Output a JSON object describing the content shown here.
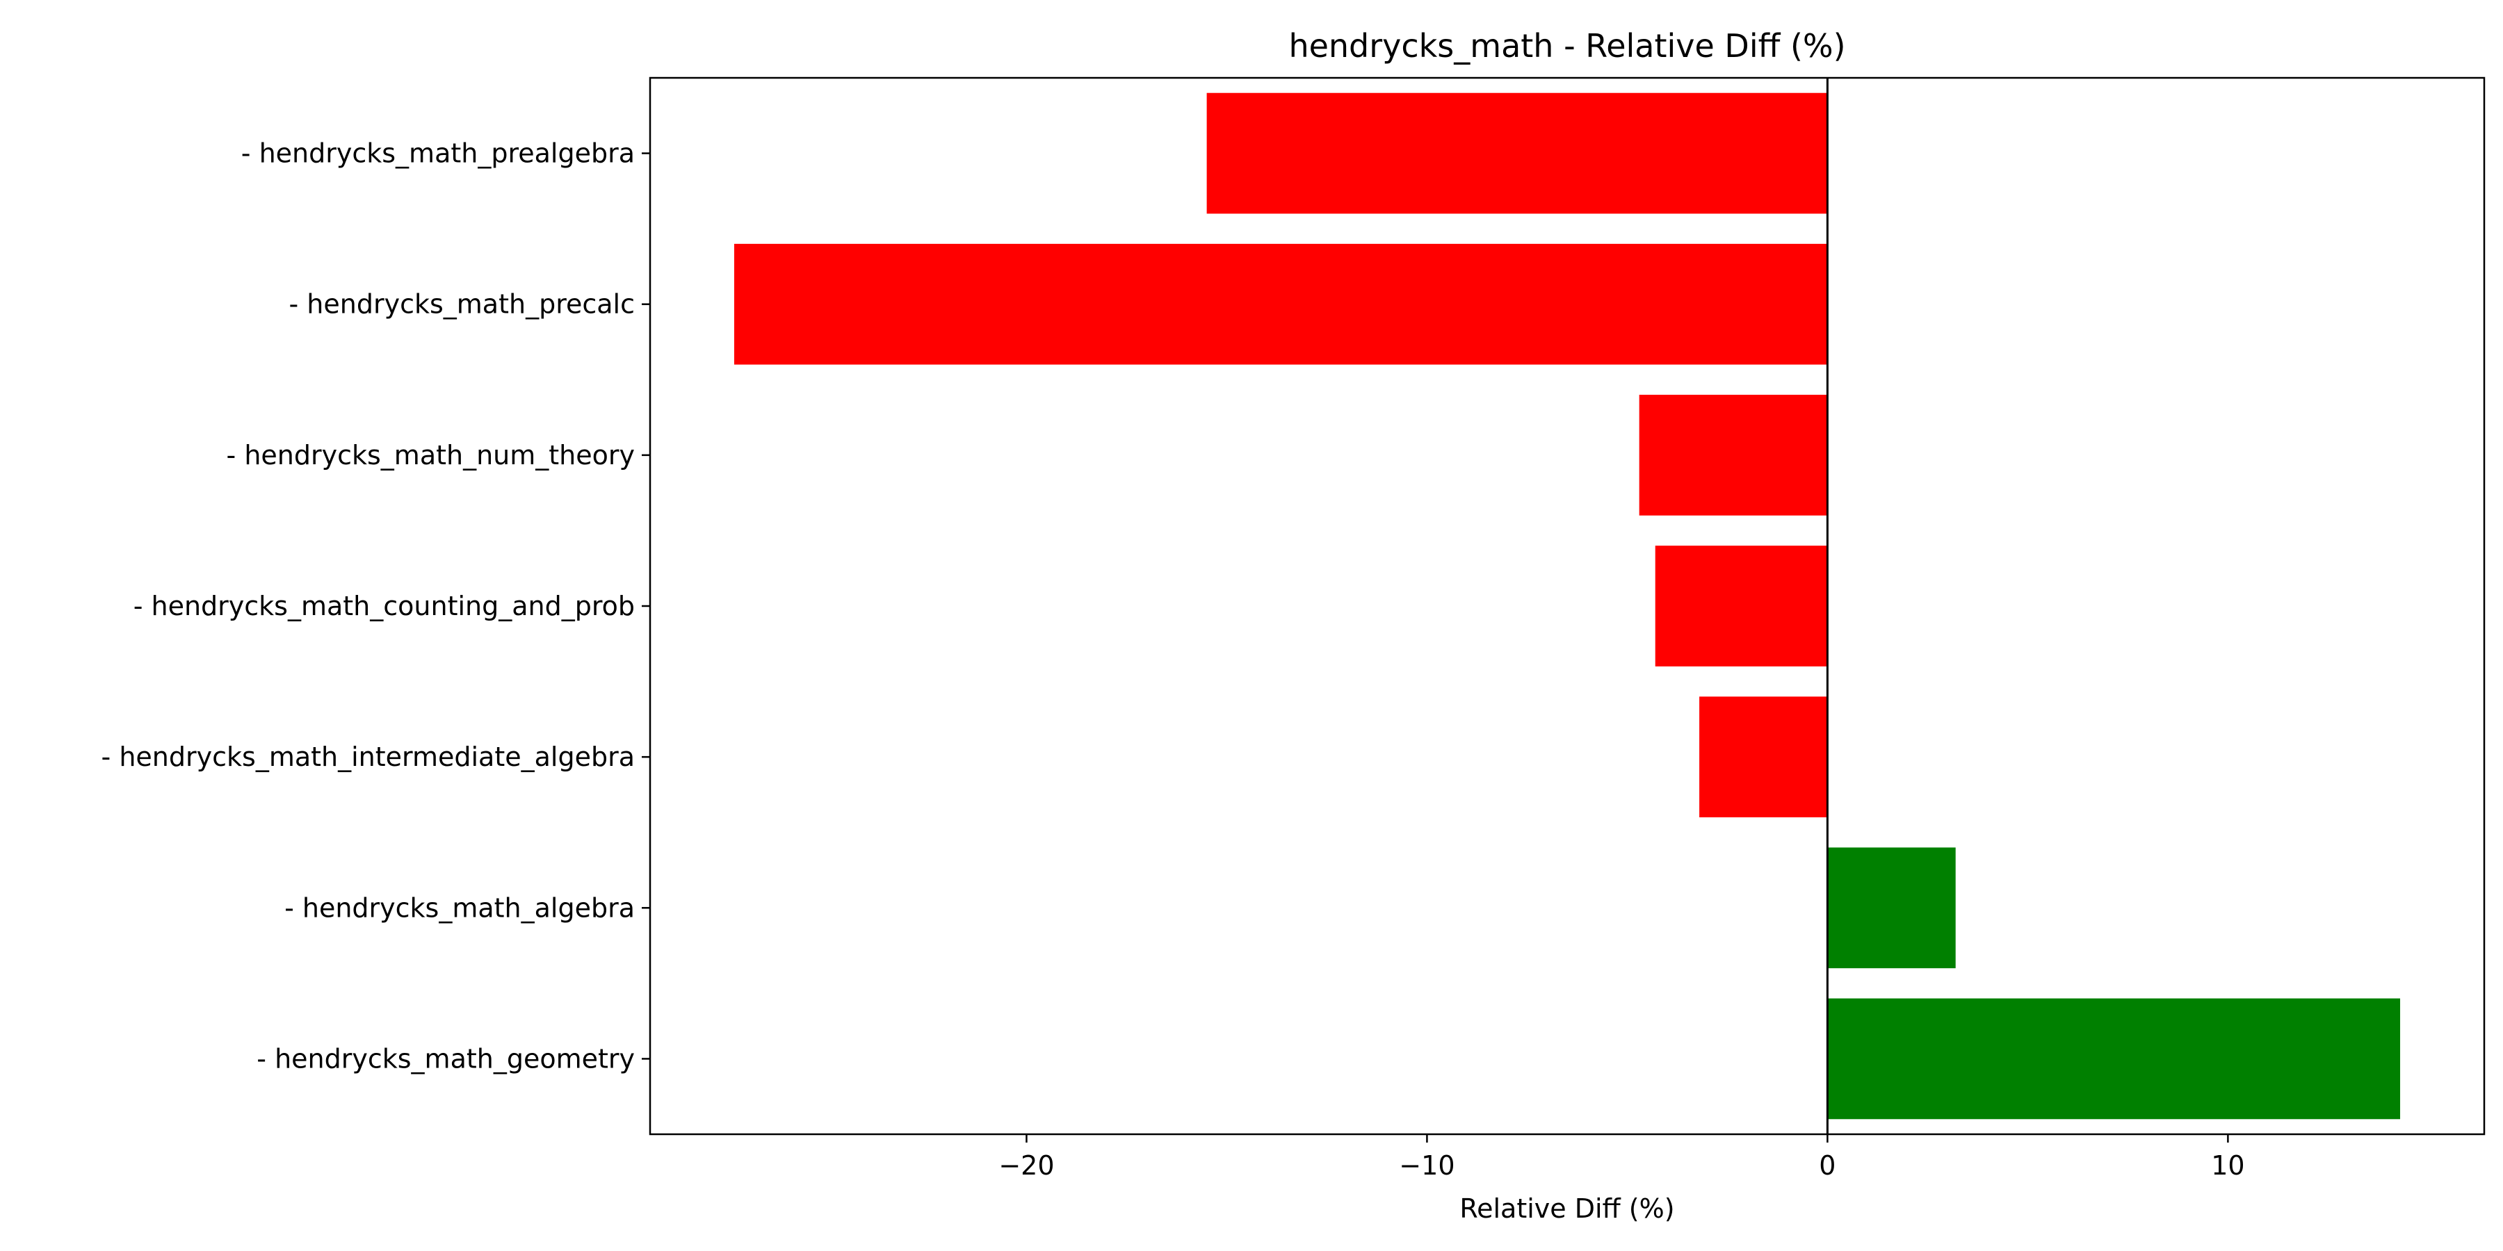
{
  "chart_data": {
    "type": "bar",
    "orientation": "horizontal",
    "title": "hendrycks_math - Relative Diff (%)",
    "xlabel": "Relative Diff (%)",
    "ylabel": "",
    "categories": [
      "- hendrycks_math_prealgebra",
      "- hendrycks_math_precalc",
      "- hendrycks_math_num_theory",
      "- hendrycks_math_counting_and_prob",
      "- hendrycks_math_intermediate_algebra",
      "- hendrycks_math_algebra",
      "- hendrycks_math_geometry"
    ],
    "values": [
      -15.5,
      -27.3,
      -4.7,
      -4.3,
      -3.2,
      3.2,
      14.3
    ],
    "xlim": [
      -29.4,
      16.4
    ],
    "xticks": [
      -20,
      -10,
      0,
      10
    ],
    "xtick_labels": [
      "−20",
      "−10",
      "0",
      "10"
    ],
    "grid": false,
    "zero_line": true,
    "colors": {
      "negative": "#ff0000",
      "positive": "#008000",
      "axis": "#000000"
    }
  }
}
